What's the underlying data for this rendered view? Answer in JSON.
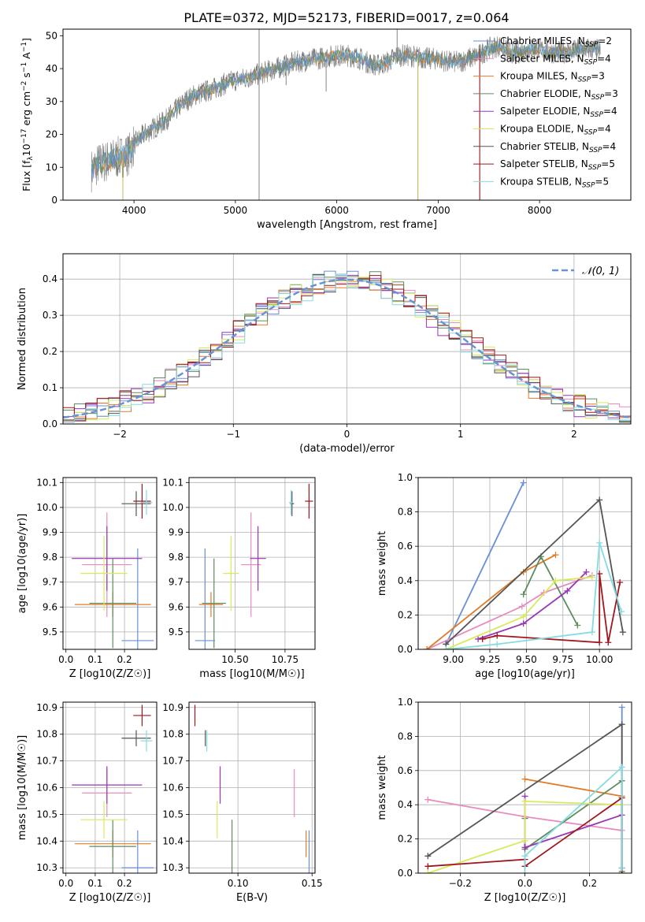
{
  "figure_title": "PLATE=0372, MJD=52173, FIBERID=0017, z=0.064",
  "colors": {
    "Chabrier MILES": "#6a8fd6",
    "Salpeter MILES": "#e88cc0",
    "Kroupa MILES": "#e07b28",
    "Chabrier ELODIE": "#5e8c5e",
    "Salpeter ELODIE": "#9a35b5",
    "Kroupa ELODIE": "#d8ea5c",
    "Chabrier STELIB": "#555555",
    "Salpeter STELIB": "#a0161c",
    "Kroupa STELIB": "#86dbe0",
    "data": "#777777",
    "normal": "#6a93d3"
  },
  "chart_data": [
    {
      "id": "spectrum",
      "type": "line",
      "title": "PLATE=0372, MJD=52173, FIBERID=0017, z=0.064",
      "xlabel": "wavelength [Angstrom, rest frame]",
      "ylabel": "Flux [f_λ 10^-17 erg cm^-2 s^-1 A^-1]",
      "ylabel_parts": [
        "Flux [f",
        "λ",
        "10",
        "−17",
        " erg cm",
        "−2",
        " s",
        "−1",
        " A",
        "−1",
        "]"
      ],
      "xlim": [
        3300,
        8900
      ],
      "ylim": [
        0,
        52
      ],
      "xticks": [
        4000,
        5000,
        6000,
        7000,
        8000
      ],
      "yticks": [
        0,
        10,
        20,
        30,
        40,
        50
      ],
      "grid": false,
      "legend_position": "top-right",
      "legend": [
        {
          "imf": "Chabrier",
          "lib": "MILES",
          "n": "2"
        },
        {
          "imf": "Salpeter",
          "lib": "MILES",
          "n": "4"
        },
        {
          "imf": "Kroupa",
          "lib": "MILES",
          "n": "3"
        },
        {
          "imf": "Chabrier",
          "lib": "ELODIE",
          "n": "3"
        },
        {
          "imf": "Salpeter",
          "lib": "ELODIE",
          "n": "4"
        },
        {
          "imf": "Kroupa",
          "lib": "ELODIE",
          "n": "4"
        },
        {
          "imf": "Chabrier",
          "lib": "STELIB",
          "n": "4"
        },
        {
          "imf": "Salpeter",
          "lib": "STELIB",
          "n": "5"
        },
        {
          "imf": "Kroupa",
          "lib": "STELIB",
          "n": "5"
        }
      ],
      "legend_suffix": "SSP",
      "continuum": [
        [
          3580,
          9
        ],
        [
          3650,
          11
        ],
        [
          3750,
          12
        ],
        [
          3850,
          13
        ],
        [
          3950,
          14
        ],
        [
          4000,
          17
        ],
        [
          4100,
          20
        ],
        [
          4200,
          22
        ],
        [
          4300,
          24
        ],
        [
          4400,
          27
        ],
        [
          4500,
          30
        ],
        [
          4600,
          32
        ],
        [
          4700,
          33
        ],
        [
          4800,
          34
        ],
        [
          4900,
          35.5
        ],
        [
          5000,
          36.5
        ],
        [
          5100,
          37
        ],
        [
          5200,
          38
        ],
        [
          5300,
          39
        ],
        [
          5400,
          40
        ],
        [
          5500,
          41
        ],
        [
          5600,
          42
        ],
        [
          5700,
          42.5
        ],
        [
          5800,
          43
        ],
        [
          5900,
          43.5
        ],
        [
          6000,
          44
        ],
        [
          6100,
          44
        ],
        [
          6200,
          43.5
        ],
        [
          6300,
          42
        ],
        [
          6400,
          41
        ],
        [
          6500,
          42
        ],
        [
          6600,
          44
        ],
        [
          6700,
          44
        ],
        [
          6800,
          43.5
        ],
        [
          6900,
          43
        ],
        [
          7000,
          43
        ],
        [
          7100,
          42
        ],
        [
          7200,
          42
        ],
        [
          7300,
          43
        ],
        [
          7400,
          44
        ],
        [
          7500,
          46
        ],
        [
          7600,
          47
        ],
        [
          7700,
          45
        ],
        [
          7800,
          45
        ],
        [
          7900,
          46
        ],
        [
          8000,
          46
        ],
        [
          8100,
          45
        ],
        [
          8200,
          45
        ],
        [
          8300,
          45
        ],
        [
          8400,
          46
        ],
        [
          8500,
          46
        ],
        [
          8600,
          45.5
        ]
      ],
      "spikes": [
        {
          "x": 5234,
          "y1": 0,
          "y2": 52
        },
        {
          "x": 6800,
          "y1": 0,
          "y2": 44
        },
        {
          "x": 7410,
          "y1": 0,
          "y2": 46
        },
        {
          "x": 6595,
          "y1": 44,
          "y2": 52
        },
        {
          "x": 5500,
          "y1": 35,
          "y2": 44
        },
        {
          "x": 5895,
          "y1": 33,
          "y2": 43
        },
        {
          "x": 3890,
          "y1": 0,
          "y2": 15
        }
      ]
    },
    {
      "id": "residuals",
      "type": "histogram",
      "xlabel": "(data-model)/error",
      "ylabel": "Normed distribution",
      "xlim": [
        -2.5,
        2.5
      ],
      "ylim": [
        0,
        0.47
      ],
      "xticks": [
        -2,
        -1,
        0,
        1,
        2
      ],
      "yticks": [
        0.0,
        0.1,
        0.2,
        0.3,
        0.4
      ],
      "grid": true,
      "legend_position": "top-right",
      "legend_label": "𝒩(0, 1)",
      "bin_width": 0.1,
      "bin_start": -2.5,
      "series_variations": [
        0.0,
        0.012,
        -0.01,
        0.015,
        -0.015,
        0.008,
        -0.006,
        0.02,
        -0.018
      ]
    },
    {
      "id": "age_vs_Z",
      "type": "errorbar",
      "xlabel": "Z [log10(Z/Z☉)]",
      "ylabel": "age  [log10(age/yr)]",
      "xlim": [
        -0.01,
        0.31
      ],
      "ylim": [
        9.43,
        10.12
      ],
      "xticks": [
        0.0,
        0.1,
        0.2
      ],
      "yticks": [
        9.5,
        9.6,
        9.7,
        9.8,
        9.9,
        10.0,
        10.1
      ],
      "grid": true,
      "points": [
        {
          "series": "Chabrier MILES",
          "x": 0.245,
          "y": 9.465,
          "xerr": 0.055,
          "yerr": 0.37
        },
        {
          "series": "Salpeter MILES",
          "x": 0.14,
          "y": 9.77,
          "xerr": 0.085,
          "yerr": 0.21
        },
        {
          "series": "Kroupa MILES",
          "x": 0.16,
          "y": 9.61,
          "xerr": 0.13,
          "yerr": 0.05
        },
        {
          "series": "Chabrier ELODIE",
          "x": 0.16,
          "y": 9.615,
          "xerr": 0.08,
          "yerr": 0.18
        },
        {
          "series": "Salpeter ELODIE",
          "x": 0.14,
          "y": 9.795,
          "xerr": 0.12,
          "yerr": 0.13
        },
        {
          "series": "Kroupa ELODIE",
          "x": 0.13,
          "y": 9.735,
          "xerr": 0.08,
          "yerr": 0.15
        },
        {
          "series": "Chabrier STELIB",
          "x": 0.24,
          "y": 10.015,
          "xerr": 0.05,
          "yerr": 0.05
        },
        {
          "series": "Salpeter STELIB",
          "x": 0.26,
          "y": 10.025,
          "xerr": 0.03,
          "yerr": 0.07
        },
        {
          "series": "Kroupa STELIB",
          "x": 0.275,
          "y": 10.02,
          "xerr": 0.02,
          "yerr": 0.05
        }
      ]
    },
    {
      "id": "age_vs_mass",
      "type": "errorbar",
      "xlabel": "mass [log10(M/M☉)]",
      "xlim": [
        10.27,
        10.9
      ],
      "ylim": [
        9.43,
        10.12
      ],
      "xticks": [
        10.5,
        10.75
      ],
      "yticks": [
        9.5,
        9.6,
        9.7,
        9.8,
        9.9,
        10.0,
        10.1
      ],
      "grid": true,
      "points": [
        {
          "series": "Chabrier MILES",
          "x": 10.35,
          "y": 9.465,
          "xerr": 0.05,
          "yerr": 0.37
        },
        {
          "series": "Salpeter MILES",
          "x": 10.58,
          "y": 9.77,
          "xerr": 0.05,
          "yerr": 0.21
        },
        {
          "series": "Kroupa MILES",
          "x": 10.38,
          "y": 9.61,
          "xerr": 0.06,
          "yerr": 0.05
        },
        {
          "series": "Chabrier ELODIE",
          "x": 10.395,
          "y": 9.615,
          "xerr": 0.06,
          "yerr": 0.18
        },
        {
          "series": "Salpeter ELODIE",
          "x": 10.615,
          "y": 9.795,
          "xerr": 0.04,
          "yerr": 0.13
        },
        {
          "series": "Kroupa ELODIE",
          "x": 10.48,
          "y": 9.735,
          "xerr": 0.04,
          "yerr": 0.15
        },
        {
          "series": "Chabrier STELIB",
          "x": 10.785,
          "y": 10.015,
          "xerr": 0.01,
          "yerr": 0.05
        },
        {
          "series": "Salpeter STELIB",
          "x": 10.87,
          "y": 10.025,
          "xerr": 0.02,
          "yerr": 0.07
        },
        {
          "series": "Kroupa STELIB",
          "x": 10.78,
          "y": 10.02,
          "xerr": 0.01,
          "yerr": 0.05
        }
      ]
    },
    {
      "id": "weight_vs_age",
      "type": "line",
      "xlabel": "age  [log10(age/yr)]",
      "ylabel": "mass weight",
      "xlim": [
        8.76,
        10.22
      ],
      "ylim": [
        0,
        1.0
      ],
      "xticks": [
        9.0,
        9.25,
        9.5,
        9.75,
        10.0
      ],
      "yticks": [
        0.0,
        0.2,
        0.4,
        0.6,
        0.8,
        1.0
      ],
      "grid": true,
      "series": [
        {
          "name": "Chabrier MILES",
          "x": [
            8.95,
            9.48
          ],
          "y": [
            0.03,
            0.97
          ]
        },
        {
          "name": "Salpeter MILES",
          "x": [
            8.82,
            9.47,
            9.62,
            9.95
          ],
          "y": [
            0.0,
            0.25,
            0.33,
            0.43
          ]
        },
        {
          "name": "Kroupa MILES",
          "x": [
            8.82,
            9.48,
            9.7
          ],
          "y": [
            0.0,
            0.45,
            0.55
          ]
        },
        {
          "name": "Chabrier ELODIE",
          "x": [
            9.48,
            9.6,
            9.85
          ],
          "y": [
            0.32,
            0.54,
            0.14
          ]
        },
        {
          "name": "Salpeter ELODIE",
          "x": [
            9.17,
            9.48,
            9.78,
            9.91
          ],
          "y": [
            0.06,
            0.15,
            0.34,
            0.45
          ]
        },
        {
          "name": "Kroupa ELODIE",
          "x": [
            8.95,
            9.48,
            9.7,
            9.95
          ],
          "y": [
            0.0,
            0.19,
            0.4,
            0.42
          ]
        },
        {
          "name": "Chabrier STELIB",
          "x": [
            8.95,
            10.0,
            10.16
          ],
          "y": [
            0.03,
            0.87,
            0.1
          ]
        },
        {
          "name": "Salpeter STELIB",
          "x": [
            9.2,
            9.3,
            10.0,
            10.0,
            10.06,
            10.14
          ],
          "y": [
            0.06,
            0.08,
            0.04,
            0.44,
            0.04,
            0.39
          ]
        },
        {
          "name": "Kroupa STELIB",
          "x": [
            8.95,
            9.3,
            9.95,
            10.0,
            10.15
          ],
          "y": [
            0.0,
            0.03,
            0.1,
            0.62,
            0.22
          ]
        }
      ]
    },
    {
      "id": "mass_vs_Z",
      "type": "errorbar",
      "xlabel": "Z [log10(Z/Z☉)]",
      "ylabel": "mass [log10(M/M☉)]",
      "xlim": [
        -0.01,
        0.31
      ],
      "ylim": [
        10.28,
        10.92
      ],
      "xticks": [
        0.0,
        0.1,
        0.2
      ],
      "yticks": [
        10.3,
        10.4,
        10.5,
        10.6,
        10.7,
        10.8,
        10.9
      ],
      "grid": true,
      "points": [
        {
          "series": "Chabrier MILES",
          "x": 0.245,
          "y": 10.3,
          "xerr": 0.055,
          "yerr": 0.14
        },
        {
          "series": "Salpeter MILES",
          "x": 0.14,
          "y": 10.58,
          "xerr": 0.085,
          "yerr": 0.09
        },
        {
          "series": "Kroupa MILES",
          "x": 0.16,
          "y": 10.39,
          "xerr": 0.13,
          "yerr": 0.05
        },
        {
          "series": "Chabrier ELODIE",
          "x": 0.16,
          "y": 10.38,
          "xerr": 0.08,
          "yerr": 0.1
        },
        {
          "series": "Salpeter ELODIE",
          "x": 0.14,
          "y": 10.61,
          "xerr": 0.12,
          "yerr": 0.07
        },
        {
          "series": "Kroupa ELODIE",
          "x": 0.13,
          "y": 10.48,
          "xerr": 0.08,
          "yerr": 0.07
        },
        {
          "series": "Chabrier STELIB",
          "x": 0.24,
          "y": 10.785,
          "xerr": 0.05,
          "yerr": 0.03
        },
        {
          "series": "Salpeter STELIB",
          "x": 0.26,
          "y": 10.87,
          "xerr": 0.03,
          "yerr": 0.04
        },
        {
          "series": "Kroupa STELIB",
          "x": 0.275,
          "y": 10.775,
          "xerr": 0.02,
          "yerr": 0.04
        }
      ]
    },
    {
      "id": "mass_vs_ebv",
      "type": "errorbar",
      "xlabel": "E(B-V)",
      "xlim": [
        0.067,
        0.152
      ],
      "ylim": [
        10.28,
        10.92
      ],
      "xticks": [
        0.1,
        0.15
      ],
      "yticks": [
        10.3,
        10.4,
        10.5,
        10.6,
        10.7,
        10.8,
        10.9
      ],
      "grid": true,
      "points": [
        {
          "series": "Chabrier MILES",
          "x": 0.148,
          "y": 10.3,
          "xerr": 0.0,
          "yerr": 0.14
        },
        {
          "series": "Salpeter MILES",
          "x": 0.138,
          "y": 10.58,
          "xerr": 0.0,
          "yerr": 0.09
        },
        {
          "series": "Kroupa MILES",
          "x": 0.146,
          "y": 10.39,
          "xerr": 0.0,
          "yerr": 0.05
        },
        {
          "series": "Chabrier ELODIE",
          "x": 0.096,
          "y": 10.38,
          "xerr": 0.0,
          "yerr": 0.1
        },
        {
          "series": "Salpeter ELODIE",
          "x": 0.088,
          "y": 10.61,
          "xerr": 0.0,
          "yerr": 0.07
        },
        {
          "series": "Kroupa ELODIE",
          "x": 0.086,
          "y": 10.48,
          "xerr": 0.0,
          "yerr": 0.07
        },
        {
          "series": "Chabrier STELIB",
          "x": 0.078,
          "y": 10.785,
          "xerr": 0.0,
          "yerr": 0.03
        },
        {
          "series": "Salpeter STELIB",
          "x": 0.071,
          "y": 10.87,
          "xerr": 0.0,
          "yerr": 0.04
        },
        {
          "series": "Kroupa STELIB",
          "x": 0.079,
          "y": 10.775,
          "xerr": 0.0,
          "yerr": 0.04
        }
      ]
    },
    {
      "id": "weight_vs_Z",
      "type": "line",
      "xlabel": "Z [log10(Z/Z☉)]",
      "ylabel": "mass weight",
      "xlim": [
        -0.33,
        0.33
      ],
      "ylim": [
        0,
        1.0
      ],
      "xticks": [
        -0.2,
        0.0,
        0.2
      ],
      "yticks": [
        0.0,
        0.2,
        0.4,
        0.6,
        0.8,
        1.0
      ],
      "grid": true,
      "series": [
        {
          "name": "Chabrier MILES",
          "x": [
            0.3,
            0.3
          ],
          "y": [
            0.03,
            0.97
          ]
        },
        {
          "name": "Salpeter MILES",
          "x": [
            -0.3,
            0.0,
            0.3
          ],
          "y": [
            0.43,
            0.33,
            0.25
          ]
        },
        {
          "name": "Kroupa MILES",
          "x": [
            0.0,
            0.3
          ],
          "y": [
            0.55,
            0.45
          ]
        },
        {
          "name": "Chabrier ELODIE",
          "x": [
            0.0,
            0.0,
            0.3,
            0.3
          ],
          "y": [
            0.32,
            0.14,
            0.54,
            0.01
          ]
        },
        {
          "name": "Salpeter ELODIE",
          "x": [
            0.0,
            0.0,
            0.3
          ],
          "y": [
            0.45,
            0.15,
            0.34
          ]
        },
        {
          "name": "Kroupa ELODIE",
          "x": [
            -0.3,
            0.0,
            0.0,
            0.3
          ],
          "y": [
            0.0,
            0.19,
            0.42,
            0.4
          ]
        },
        {
          "name": "Chabrier STELIB",
          "x": [
            -0.3,
            0.3,
            0.3
          ],
          "y": [
            0.1,
            0.87,
            0.03
          ]
        },
        {
          "name": "Salpeter STELIB",
          "x": [
            -0.3,
            0.0,
            0.0,
            0.3,
            0.3
          ],
          "y": [
            0.04,
            0.08,
            0.04,
            0.44,
            0.0
          ]
        },
        {
          "name": "Kroupa STELIB",
          "x": [
            0.0,
            0.0,
            0.3,
            0.3
          ],
          "y": [
            0.0,
            0.1,
            0.62,
            0.03
          ]
        }
      ]
    }
  ]
}
